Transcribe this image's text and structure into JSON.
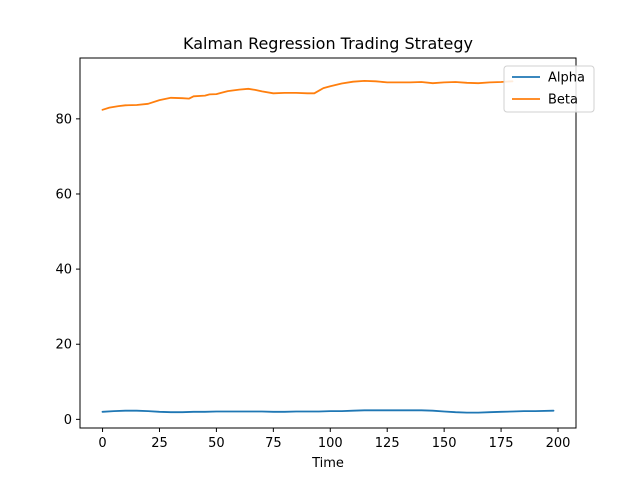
{
  "chart_data": {
    "type": "line",
    "title": "Kalman Regression Trading Strategy",
    "xlabel": "Time",
    "ylabel": "",
    "xlim": [
      -9.9,
      207.9
    ],
    "ylim": [
      -2.3,
      96.2
    ],
    "xticks": [
      0,
      25,
      50,
      75,
      100,
      125,
      150,
      175,
      200
    ],
    "yticks": [
      0,
      20,
      40,
      60,
      80
    ],
    "grid": false,
    "legend_position": "top-right",
    "series": [
      {
        "name": "Alpha",
        "color": "#1f77b4",
        "x": [
          0,
          5,
          10,
          15,
          20,
          25,
          30,
          35,
          40,
          45,
          50,
          55,
          60,
          65,
          70,
          75,
          80,
          85,
          90,
          95,
          100,
          105,
          110,
          115,
          120,
          125,
          130,
          135,
          140,
          145,
          150,
          155,
          160,
          165,
          170,
          175,
          180,
          185,
          190,
          198
        ],
        "values": [
          2.0,
          2.2,
          2.3,
          2.3,
          2.2,
          2.0,
          1.9,
          1.9,
          2.0,
          2.0,
          2.1,
          2.1,
          2.1,
          2.1,
          2.1,
          2.0,
          2.0,
          2.1,
          2.1,
          2.1,
          2.2,
          2.2,
          2.3,
          2.4,
          2.4,
          2.4,
          2.4,
          2.4,
          2.4,
          2.3,
          2.1,
          1.9,
          1.8,
          1.8,
          1.9,
          2.0,
          2.1,
          2.2,
          2.2,
          2.3
        ]
      },
      {
        "name": "Beta",
        "color": "#ff7f0e",
        "x": [
          0,
          3,
          7,
          10,
          15,
          20,
          25,
          30,
          35,
          38,
          40,
          45,
          47,
          50,
          52,
          55,
          60,
          64,
          67,
          70,
          75,
          80,
          85,
          90,
          93,
          95,
          97,
          100,
          105,
          110,
          115,
          120,
          125,
          130,
          135,
          140,
          145,
          150,
          155,
          160,
          165,
          170,
          175,
          180
        ],
        "values": [
          82.4,
          83.0,
          83.4,
          83.6,
          83.7,
          84.0,
          85.0,
          85.6,
          85.5,
          85.4,
          86.0,
          86.2,
          86.5,
          86.6,
          86.9,
          87.4,
          87.8,
          88.0,
          87.7,
          87.3,
          86.8,
          86.9,
          86.9,
          86.8,
          86.8,
          87.5,
          88.2,
          88.7,
          89.4,
          89.9,
          90.1,
          90.0,
          89.7,
          89.7,
          89.7,
          89.8,
          89.5,
          89.7,
          89.8,
          89.6,
          89.5,
          89.7,
          89.8,
          90.0
        ]
      }
    ]
  }
}
